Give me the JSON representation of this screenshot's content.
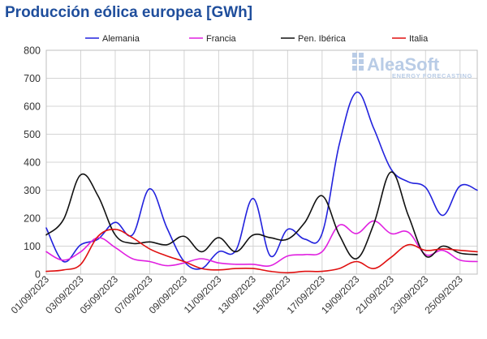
{
  "chart_data": {
    "type": "line",
    "title": "Producción eólica europea [GWh]",
    "xlabel": "",
    "ylabel": "",
    "ylim": [
      0,
      800
    ],
    "y_ticks": [
      "0",
      "100",
      "200",
      "300",
      "400",
      "500",
      "600",
      "700",
      "800"
    ],
    "grid": true,
    "legend_position": "top",
    "x": [
      "01/09/2023",
      "02/09/2023",
      "03/09/2023",
      "04/09/2023",
      "05/09/2023",
      "06/09/2023",
      "07/09/2023",
      "08/09/2023",
      "09/09/2023",
      "10/09/2023",
      "11/09/2023",
      "12/09/2023",
      "13/09/2023",
      "14/09/2023",
      "15/09/2023",
      "16/09/2023",
      "17/09/2023",
      "18/09/2023",
      "19/09/2023",
      "20/09/2023",
      "21/09/2023",
      "22/09/2023",
      "23/09/2023",
      "24/09/2023",
      "25/09/2023",
      "26/09/2023"
    ],
    "x_tick_labels": [
      "01/09/2023",
      "03/09/2023",
      "05/09/2023",
      "07/09/2023",
      "09/09/2023",
      "11/09/2023",
      "13/09/2023",
      "15/09/2023",
      "17/09/2023",
      "19/09/2023",
      "21/09/2023",
      "23/09/2023",
      "25/09/2023"
    ],
    "series": [
      {
        "name": "Alemania",
        "color": "#2222dd",
        "values": [
          165,
          45,
          105,
          125,
          185,
          140,
          305,
          165,
          45,
          20,
          80,
          85,
          270,
          65,
          160,
          125,
          145,
          465,
          650,
          520,
          375,
          330,
          310,
          210,
          315,
          300
        ]
      },
      {
        "name": "Francia",
        "color": "#e020e0",
        "values": [
          80,
          50,
          80,
          130,
          95,
          55,
          45,
          30,
          40,
          55,
          40,
          35,
          35,
          30,
          65,
          70,
          80,
          175,
          145,
          190,
          145,
          150,
          70,
          85,
          50,
          45
        ]
      },
      {
        "name": "Pen. Ibérica",
        "color": "#111111",
        "values": [
          140,
          195,
          355,
          280,
          140,
          110,
          115,
          105,
          135,
          80,
          130,
          80,
          140,
          130,
          125,
          185,
          280,
          140,
          55,
          180,
          365,
          210,
          65,
          100,
          75,
          70
        ]
      },
      {
        "name": "Italia",
        "color": "#e01010",
        "values": [
          10,
          15,
          35,
          135,
          160,
          130,
          90,
          65,
          45,
          20,
          15,
          20,
          20,
          10,
          5,
          10,
          10,
          20,
          45,
          20,
          60,
          105,
          85,
          90,
          85,
          80
        ]
      }
    ]
  },
  "logo": {
    "name": "AleaSoft",
    "tagline": "ENERGY FORECASTING"
  }
}
